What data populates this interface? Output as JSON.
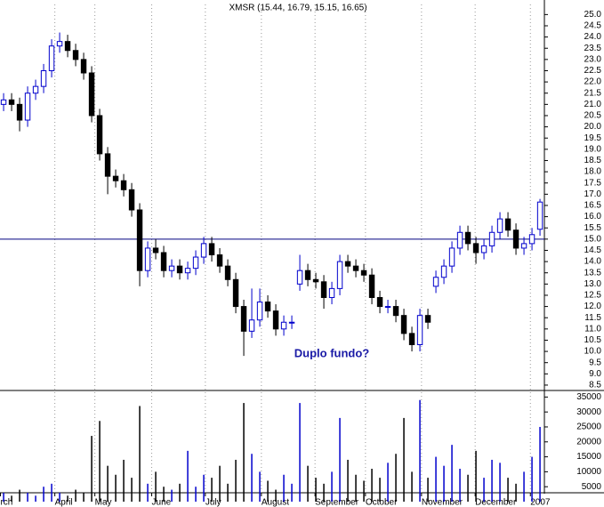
{
  "chart_data": {
    "type": "candlestick",
    "title": "XMSR (15.44, 16.79, 15.15, 16.65)",
    "annotation": "Duplo fundo?",
    "hline": 15.0,
    "up_color": "#0000cc",
    "down_color": "#000000",
    "hline_color": "#000080",
    "annotation_color": "#1a1aa6",
    "xlim": [
      -0.45,
      67.55
    ],
    "xticks": [
      {
        "value": -0.4,
        "label": "rch"
      },
      {
        "value": 6.4,
        "label": "April"
      },
      {
        "value": 11.4,
        "label": "May"
      },
      {
        "value": 18.5,
        "label": "June"
      },
      {
        "value": 25.2,
        "label": "July"
      },
      {
        "value": 32.2,
        "label": "August"
      },
      {
        "value": 38.9,
        "label": "September"
      },
      {
        "value": 45.2,
        "label": "October"
      },
      {
        "value": 52.2,
        "label": "November"
      },
      {
        "value": 58.9,
        "label": "December"
      },
      {
        "value": 65.8,
        "label": "2007"
      }
    ],
    "ylim": [
      8.3,
      25.45
    ],
    "yticks": [
      {
        "value": 8.5,
        "label": "8.5"
      },
      {
        "value": 9,
        "label": "9.0"
      },
      {
        "value": 9.5,
        "label": "9.5"
      },
      {
        "value": 10,
        "label": "10.0"
      },
      {
        "value": 10.5,
        "label": "10.5"
      },
      {
        "value": 11,
        "label": "11.0"
      },
      {
        "value": 11.5,
        "label": "11.5"
      },
      {
        "value": 12,
        "label": "12.0"
      },
      {
        "value": 12.5,
        "label": "12.5"
      },
      {
        "value": 13,
        "label": "13.0"
      },
      {
        "value": 13.5,
        "label": "13.5"
      },
      {
        "value": 14,
        "label": "14.0"
      },
      {
        "value": 14.5,
        "label": "14.5"
      },
      {
        "value": 15,
        "label": "15.0"
      },
      {
        "value": 15.5,
        "label": "15.5"
      },
      {
        "value": 16,
        "label": "16.0"
      },
      {
        "value": 16.5,
        "label": "16.5"
      },
      {
        "value": 17,
        "label": "17.0"
      },
      {
        "value": 17.5,
        "label": "17.5"
      },
      {
        "value": 18,
        "label": "18.0"
      },
      {
        "value": 18.5,
        "label": "18.5"
      },
      {
        "value": 19,
        "label": "19.0"
      },
      {
        "value": 19.5,
        "label": "19.5"
      },
      {
        "value": 20,
        "label": "20.0"
      },
      {
        "value": 20.5,
        "label": "20.5"
      },
      {
        "value": 21,
        "label": "21.0"
      },
      {
        "value": 21.5,
        "label": "21.5"
      },
      {
        "value": 22,
        "label": "22.0"
      },
      {
        "value": 22.5,
        "label": "22.5"
      },
      {
        "value": 23,
        "label": "23.0"
      },
      {
        "value": 23.5,
        "label": "23.5"
      },
      {
        "value": 24,
        "label": "24.0"
      },
      {
        "value": 24.5,
        "label": "24.5"
      },
      {
        "value": 25,
        "label": "25.0"
      }
    ],
    "open": [
      21.0,
      21.2,
      21.0,
      20.3,
      21.5,
      21.8,
      22.5,
      23.6,
      23.8,
      23.4,
      23.0,
      22.4,
      20.5,
      18.8,
      17.8,
      17.6,
      17.2,
      16.3,
      13.6,
      14.6,
      14.4,
      13.6,
      13.8,
      13.5,
      13.7,
      14.2,
      14.8,
      14.3,
      13.8,
      13.2,
      12.0,
      10.9,
      11.4,
      12.2,
      11.8,
      11.0,
      11.3,
      13.0,
      13.6,
      13.2,
      13.1,
      12.4,
      12.8,
      14.0,
      13.8,
      13.6,
      13.4,
      12.4,
      12.0,
      12.0,
      11.6,
      10.8,
      10.3,
      11.6,
      12.9,
      13.3,
      13.8,
      14.6,
      15.3,
      14.8,
      14.4,
      14.7,
      15.3,
      15.9,
      15.4,
      14.6,
      14.8,
      15.44
    ],
    "high": [
      21.5,
      21.5,
      21.3,
      21.8,
      22.1,
      22.8,
      23.9,
      24.2,
      24.1,
      23.7,
      23.3,
      22.7,
      20.8,
      19.1,
      18.1,
      17.9,
      17.5,
      16.6,
      14.9,
      15.0,
      14.7,
      14.1,
      14.1,
      14.0,
      14.5,
      15.1,
      15.1,
      14.6,
      14.1,
      13.5,
      12.3,
      12.8,
      12.8,
      12.5,
      12.1,
      11.6,
      11.6,
      14.3,
      13.9,
      13.5,
      13.4,
      13.1,
      14.3,
      14.3,
      14.1,
      13.9,
      13.7,
      12.7,
      12.3,
      12.3,
      11.9,
      11.1,
      11.9,
      11.9,
      13.6,
      14.1,
      14.9,
      15.6,
      15.6,
      15.1,
      15.0,
      15.6,
      16.2,
      16.2,
      15.7,
      15.1,
      15.5,
      16.79
    ],
    "low": [
      20.7,
      20.7,
      19.8,
      20.0,
      21.2,
      21.5,
      22.2,
      23.3,
      23.1,
      22.7,
      22.1,
      20.2,
      18.5,
      17.0,
      17.3,
      16.9,
      16.0,
      12.9,
      13.3,
      14.1,
      13.3,
      13.3,
      13.2,
      13.2,
      13.4,
      13.9,
      14.0,
      13.5,
      12.9,
      11.7,
      9.8,
      10.6,
      11.1,
      11.5,
      10.7,
      10.7,
      11.0,
      12.7,
      12.9,
      12.8,
      11.9,
      12.1,
      12.5,
      13.5,
      13.3,
      13.1,
      12.1,
      11.7,
      11.7,
      11.3,
      10.5,
      10.0,
      10.0,
      11.0,
      12.6,
      13.0,
      13.5,
      14.3,
      14.5,
      13.9,
      14.1,
      14.4,
      15.0,
      15.1,
      14.3,
      14.3,
      14.5,
      15.15
    ],
    "close": [
      21.2,
      21.0,
      20.3,
      21.5,
      21.8,
      22.5,
      23.6,
      23.8,
      23.4,
      23.0,
      22.4,
      20.5,
      18.8,
      17.8,
      17.6,
      17.2,
      16.3,
      13.6,
      14.6,
      14.4,
      13.6,
      13.8,
      13.5,
      13.7,
      14.2,
      14.8,
      14.3,
      13.8,
      13.2,
      12.0,
      10.9,
      11.4,
      12.2,
      11.8,
      11.0,
      11.3,
      11.3,
      13.6,
      13.2,
      13.1,
      12.4,
      12.8,
      14.0,
      13.8,
      13.6,
      13.4,
      12.4,
      12.0,
      12.0,
      11.6,
      10.8,
      10.3,
      11.6,
      11.3,
      13.3,
      13.8,
      14.6,
      15.3,
      14.8,
      14.4,
      14.7,
      15.3,
      15.9,
      15.4,
      14.6,
      14.8,
      15.2,
      16.65
    ],
    "volume": [
      3000,
      2000,
      4000,
      3000,
      2000,
      5000,
      6000,
      3000,
      2000,
      4000,
      3000,
      22000,
      27000,
      12000,
      9000,
      14000,
      8000,
      32000,
      6000,
      10000,
      5000,
      4000,
      6000,
      17000,
      5000,
      9000,
      8000,
      12000,
      6000,
      14000,
      33000,
      16000,
      10000,
      7000,
      4000,
      9000,
      6000,
      33000,
      12000,
      8000,
      6000,
      10000,
      28000,
      14000,
      9000,
      7000,
      11000,
      8000,
      13000,
      16000,
      28000,
      10000,
      34000,
      8000,
      15000,
      12000,
      19000,
      11000,
      9000,
      17000,
      8000,
      14000,
      13000,
      8000,
      6000,
      10000,
      15000,
      25000
    ],
    "vlim": [
      0,
      36000
    ],
    "vticks": [
      5000,
      10000,
      15000,
      20000,
      25000,
      30000,
      35000
    ]
  }
}
